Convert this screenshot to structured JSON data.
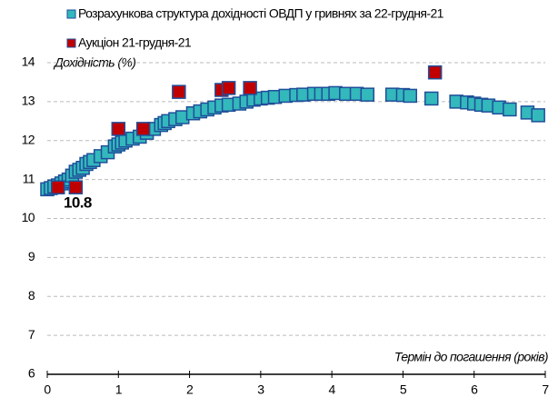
{
  "chart_data": {
    "type": "scatter",
    "xlabel": "Термін до погашення (років)",
    "ylabel": "Дохідність (%)",
    "xlim": [
      0,
      7
    ],
    "xticks": [
      0,
      1,
      2,
      3,
      4,
      5,
      6,
      7
    ],
    "ylim": [
      6,
      14
    ],
    "yticks": [
      6,
      7,
      8,
      9,
      10,
      11,
      12,
      13,
      14
    ],
    "grid": true,
    "annotations": [
      "10.8"
    ],
    "series": [
      {
        "name": "Розрахункова структура дохідності ОВДП у гривнях за 22-грудня-21",
        "color": "#33b8bc",
        "x": [
          0.0,
          0.05,
          0.1,
          0.15,
          0.2,
          0.25,
          0.3,
          0.35,
          0.4,
          0.45,
          0.5,
          0.55,
          0.6,
          0.65,
          0.75,
          0.85,
          0.95,
          1.0,
          1.05,
          1.1,
          1.2,
          1.3,
          1.4,
          1.5,
          1.6,
          1.65,
          1.7,
          1.8,
          1.9,
          2.05,
          2.15,
          2.25,
          2.35,
          2.45,
          2.55,
          2.7,
          2.8,
          2.9,
          3.0,
          3.1,
          3.2,
          3.35,
          3.5,
          3.6,
          3.75,
          3.85,
          3.95,
          4.05,
          4.2,
          4.35,
          4.5,
          4.85,
          5.0,
          5.1,
          5.4,
          5.75,
          5.9,
          6.0,
          6.1,
          6.2,
          6.35,
          6.5,
          6.75,
          6.9
        ],
        "values": [
          10.75,
          10.78,
          10.82,
          10.85,
          10.9,
          10.95,
          11.0,
          11.1,
          11.2,
          11.25,
          11.3,
          11.4,
          11.45,
          11.5,
          11.6,
          11.7,
          11.85,
          11.9,
          11.95,
          12.0,
          12.05,
          12.1,
          12.2,
          12.3,
          12.4,
          12.45,
          12.5,
          12.55,
          12.6,
          12.7,
          12.75,
          12.8,
          12.85,
          12.9,
          12.92,
          12.95,
          13.0,
          13.05,
          13.08,
          13.1,
          13.12,
          13.15,
          13.17,
          13.18,
          13.2,
          13.2,
          13.2,
          13.22,
          13.2,
          13.2,
          13.18,
          13.18,
          13.17,
          13.15,
          13.08,
          13.0,
          12.98,
          12.95,
          12.92,
          12.9,
          12.85,
          12.8,
          12.72,
          12.65
        ]
      },
      {
        "name": "Аукціон 21-грудня-21",
        "color": "#c00000",
        "x": [
          0.15,
          0.4,
          1.0,
          1.35,
          1.85,
          2.45,
          2.55,
          2.85,
          5.45
        ],
        "values": [
          10.8,
          10.8,
          12.3,
          12.3,
          13.25,
          13.3,
          13.35,
          13.35,
          13.75
        ]
      }
    ]
  }
}
